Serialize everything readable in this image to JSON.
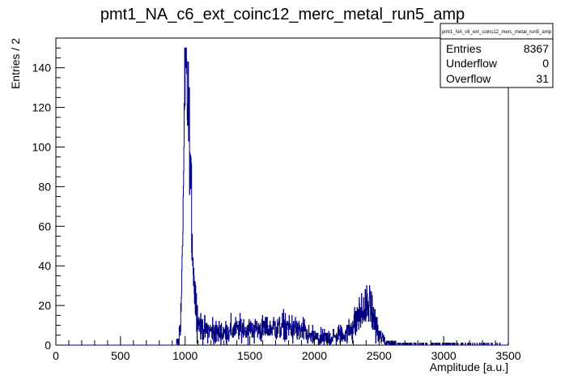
{
  "chart_data": {
    "type": "histogram",
    "title": "pmt1_NA_c6_ext_coinc12_merc_metal_run5_amp",
    "xlabel": "Amplitude [a.u.]",
    "ylabel": "Entries / 2",
    "xlim": [
      0,
      3500
    ],
    "ylim": [
      0,
      155
    ],
    "bin_width": 2,
    "x_ticks": [
      0,
      500,
      1000,
      1500,
      2000,
      2500,
      3000,
      3500
    ],
    "y_ticks": [
      0,
      20,
      40,
      60,
      80,
      100,
      120,
      140
    ],
    "line_color": "#000080",
    "stats": {
      "title": "pmt1_NA_c6_ext_coinc12_merc_metal_run5_amp",
      "rows": [
        {
          "label": "Entries",
          "value": "8367"
        },
        {
          "label": "Underflow",
          "value": "0"
        },
        {
          "label": "Overflow",
          "value": "31"
        }
      ]
    },
    "profile": [
      [
        0,
        0
      ],
      [
        930,
        0
      ],
      [
        950,
        3
      ],
      [
        965,
        10
      ],
      [
        975,
        30
      ],
      [
        982,
        60
      ],
      [
        990,
        95
      ],
      [
        996,
        120
      ],
      [
        1002,
        133
      ],
      [
        1008,
        149
      ],
      [
        1014,
        128
      ],
      [
        1020,
        122
      ],
      [
        1028,
        115
      ],
      [
        1036,
        100
      ],
      [
        1044,
        82
      ],
      [
        1052,
        62
      ],
      [
        1062,
        42
      ],
      [
        1072,
        30
      ],
      [
        1085,
        20
      ],
      [
        1100,
        13
      ],
      [
        1130,
        8
      ],
      [
        1200,
        7
      ],
      [
        1300,
        6
      ],
      [
        1400,
        8
      ],
      [
        1500,
        8
      ],
      [
        1600,
        8
      ],
      [
        1700,
        9
      ],
      [
        1800,
        9
      ],
      [
        1900,
        7
      ],
      [
        1980,
        4
      ],
      [
        2050,
        3
      ],
      [
        2150,
        4
      ],
      [
        2250,
        6
      ],
      [
        2300,
        10
      ],
      [
        2350,
        15
      ],
      [
        2400,
        19
      ],
      [
        2430,
        20
      ],
      [
        2460,
        13
      ],
      [
        2500,
        5
      ],
      [
        2550,
        1.5
      ],
      [
        2650,
        0.4
      ],
      [
        3400,
        0.1
      ],
      [
        3500,
        0
      ]
    ]
  }
}
